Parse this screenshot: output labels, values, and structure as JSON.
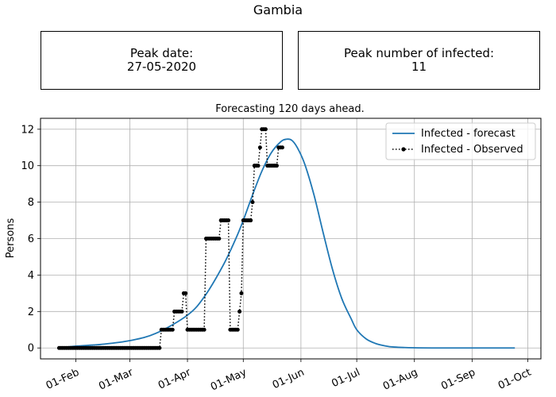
{
  "page": {
    "suptitle": "Gambia",
    "peak_date_label": "Peak date:",
    "peak_date_value": "27-05-2020",
    "peak_infected_label": "Peak number of infected:",
    "peak_infected_value": "11"
  },
  "chart_data": {
    "type": "line",
    "title": "Forecasting 120 days ahead.",
    "xlabel": "",
    "ylabel": "Persons",
    "x_axis_type": "date",
    "xlim": [
      "2020-01-13",
      "2020-10-08"
    ],
    "ylim": [
      -0.6,
      12.6
    ],
    "grid": true,
    "legend_position": "top-right",
    "x_ticks": [
      {
        "date": "2020-02-01",
        "label": "01-Feb"
      },
      {
        "date": "2020-03-01",
        "label": "01-Mar"
      },
      {
        "date": "2020-04-01",
        "label": "01-Apr"
      },
      {
        "date": "2020-05-01",
        "label": "01-May"
      },
      {
        "date": "2020-06-01",
        "label": "01-Jun"
      },
      {
        "date": "2020-07-01",
        "label": "01-Jul"
      },
      {
        "date": "2020-08-01",
        "label": "01-Aug"
      },
      {
        "date": "2020-09-01",
        "label": "01-Sep"
      },
      {
        "date": "2020-10-01",
        "label": "01-Oct"
      }
    ],
    "y_ticks": [
      0,
      2,
      4,
      6,
      8,
      10,
      12
    ],
    "series": [
      {
        "name": "Infected - forecast",
        "color": "#1f77b4",
        "style": "solid",
        "x": [
          "2020-01-23",
          "2020-02-01",
          "2020-02-15",
          "2020-03-01",
          "2020-03-15",
          "2020-04-01",
          "2020-04-10",
          "2020-04-20",
          "2020-04-27",
          "2020-05-01",
          "2020-05-06",
          "2020-05-11",
          "2020-05-16",
          "2020-05-21",
          "2020-05-24",
          "2020-05-27",
          "2020-05-30",
          "2020-06-03",
          "2020-06-08",
          "2020-06-13",
          "2020-06-18",
          "2020-06-23",
          "2020-06-28",
          "2020-07-01",
          "2020-07-06",
          "2020-07-11",
          "2020-07-16",
          "2020-07-21",
          "2020-08-01",
          "2020-08-15",
          "2020-09-01",
          "2020-09-24"
        ],
        "y": [
          0.0,
          0.1,
          0.2,
          0.4,
          0.8,
          1.8,
          2.8,
          4.5,
          6.0,
          7.0,
          8.4,
          9.7,
          10.7,
          11.3,
          11.45,
          11.4,
          11.0,
          10.1,
          8.4,
          6.3,
          4.3,
          2.7,
          1.6,
          1.0,
          0.5,
          0.25,
          0.12,
          0.05,
          0.01,
          0.0,
          0.0,
          0.0
        ]
      },
      {
        "name": "Infected - Observed",
        "color": "#000000",
        "style": "dotted-markers",
        "runs": [
          {
            "start": "2020-01-23",
            "end": "2020-03-17",
            "value": 0
          },
          {
            "start": "2020-03-18",
            "end": "2020-03-24",
            "value": 1
          },
          {
            "start": "2020-03-25",
            "end": "2020-03-29",
            "value": 2
          },
          {
            "start": "2020-03-30",
            "end": "2020-03-31",
            "value": 3
          },
          {
            "start": "2020-04-01",
            "end": "2020-04-10",
            "value": 1
          },
          {
            "start": "2020-04-11",
            "end": "2020-04-18",
            "value": 6
          },
          {
            "start": "2020-04-19",
            "end": "2020-04-23",
            "value": 7
          },
          {
            "start": "2020-04-24",
            "end": "2020-04-28",
            "value": 1
          },
          {
            "start": "2020-04-29",
            "end": "2020-04-29",
            "value": 2
          },
          {
            "start": "2020-04-30",
            "end": "2020-04-30",
            "value": 3
          },
          {
            "start": "2020-05-01",
            "end": "2020-05-05",
            "value": 7
          },
          {
            "start": "2020-05-06",
            "end": "2020-05-06",
            "value": 8
          },
          {
            "start": "2020-05-07",
            "end": "2020-05-09",
            "value": 10
          },
          {
            "start": "2020-05-10",
            "end": "2020-05-10",
            "value": 11
          },
          {
            "start": "2020-05-11",
            "end": "2020-05-13",
            "value": 12
          },
          {
            "start": "2020-05-14",
            "end": "2020-05-19",
            "value": 10
          },
          {
            "start": "2020-05-20",
            "end": "2020-05-22",
            "value": 11
          }
        ]
      }
    ]
  }
}
